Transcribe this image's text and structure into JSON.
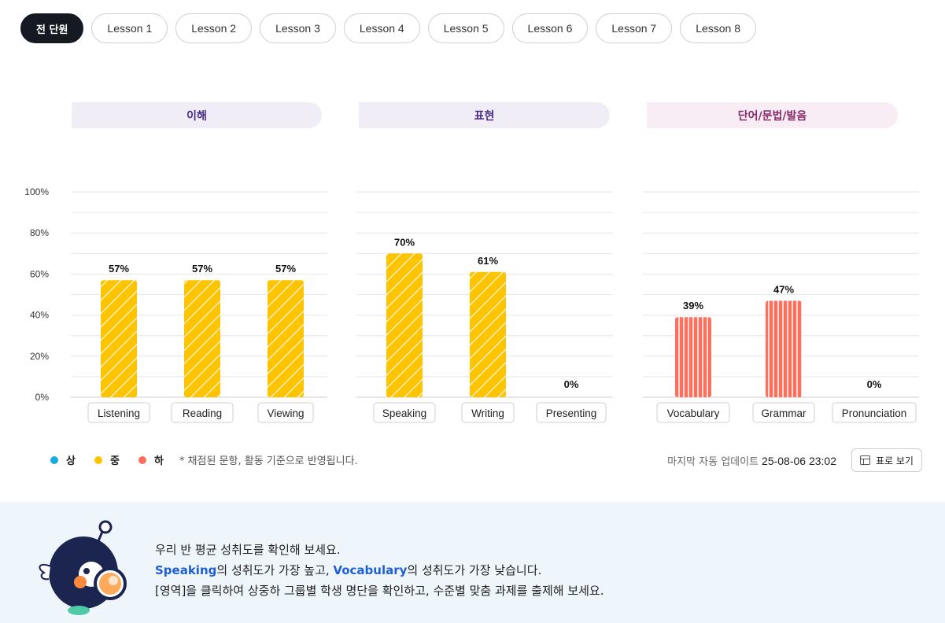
{
  "tabs": [
    "전 단원",
    "Lesson 1",
    "Lesson 2",
    "Lesson 3",
    "Lesson 4",
    "Lesson 5",
    "Lesson 6",
    "Lesson 7",
    "Lesson 8"
  ],
  "sections": [
    "이해",
    "표현",
    "단어/문법/발음"
  ],
  "chart_data": {
    "type": "bar",
    "ylim": [
      0,
      100
    ],
    "yticks": [
      "100%",
      "80%",
      "60%",
      "40%",
      "20%",
      "0%"
    ],
    "groups": [
      {
        "name": "이해",
        "categories": [
          "Listening",
          "Reading",
          "Viewing"
        ],
        "values": [
          57,
          57,
          57
        ],
        "labels": [
          "57%",
          "57%",
          "57%"
        ],
        "level": "중",
        "color": "#ffc400"
      },
      {
        "name": "표현",
        "categories": [
          "Speaking",
          "Writing",
          "Presenting"
        ],
        "values": [
          70,
          61,
          0
        ],
        "labels": [
          "70%",
          "61%",
          "0%"
        ],
        "level": "중",
        "color": "#ffc400"
      },
      {
        "name": "단어/문법/발음",
        "categories": [
          "Vocabulary",
          "Grammar",
          "Pronunciation"
        ],
        "values": [
          39,
          47,
          0
        ],
        "labels": [
          "39%",
          "47%",
          "0%"
        ],
        "level": "하",
        "color": "#ff6f5e"
      }
    ]
  },
  "legend": {
    "items": [
      {
        "label": "상",
        "color": "#1aa9e0"
      },
      {
        "label": "중",
        "color": "#ffc400"
      },
      {
        "label": "하",
        "color": "#ff6f5e"
      }
    ],
    "note": "* 채점된 문항, 활동 기준으로 반영됩니다."
  },
  "updated": {
    "label": "마지막 자동 업데이트",
    "value": "25-08-06 23:02"
  },
  "table_button": "표로 보기",
  "message": {
    "line1": "우리 반 평균 성취도를 확인해 보세요.",
    "line2_hl1": "Speaking",
    "line2_mid": "의 성취도가 가장 높고, ",
    "line2_hl2": "Vocabulary",
    "line2_end": "의 성취도가 가장 낮습니다.",
    "line3": "[영역]을 클릭하여 상중하 그룹별 학생 명단을 확인하고, 수준별 맞춤 과제를 출제해 보세요."
  }
}
